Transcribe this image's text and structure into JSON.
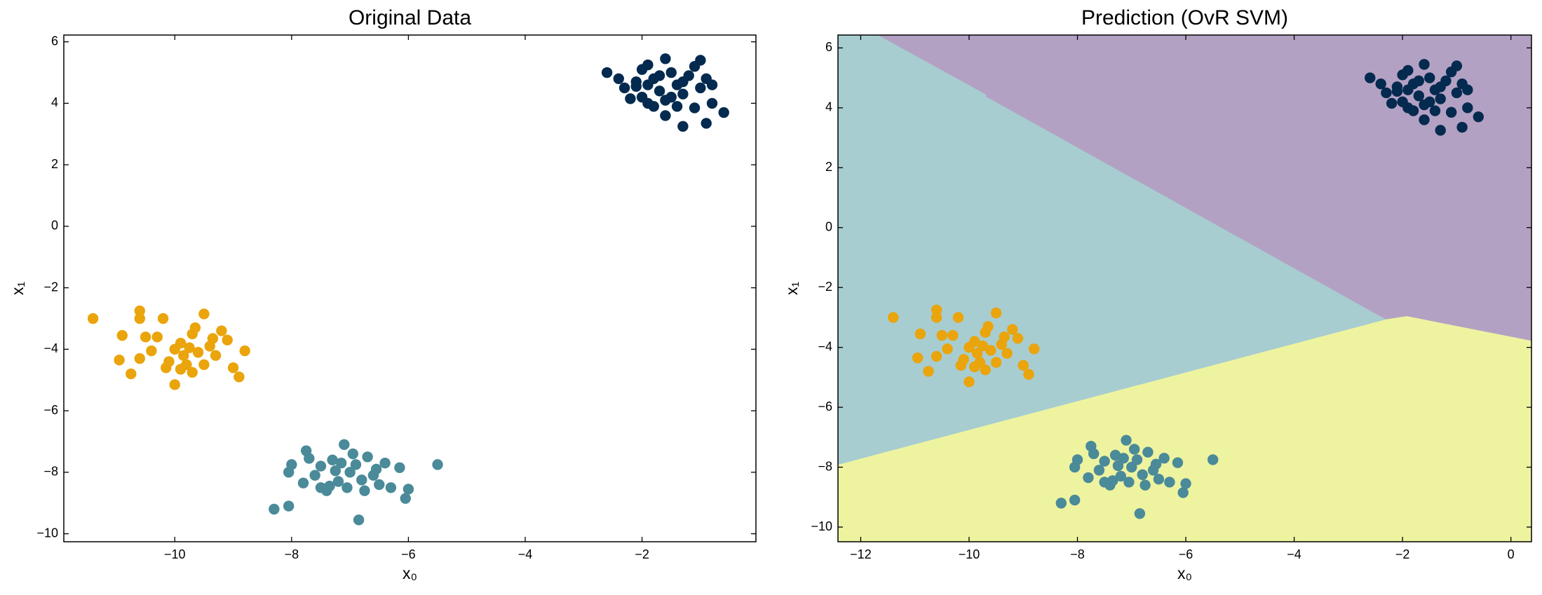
{
  "chart_data": [
    {
      "type": "scatter",
      "title": "Original Data",
      "xlabel": "x₀",
      "ylabel": "x₁",
      "xlim": [
        -11.9,
        -0.05
      ],
      "ylim": [
        -10.26,
        6.22
      ],
      "xticks": [
        {
          "value": -10,
          "label": "−10"
        },
        {
          "value": -8,
          "label": "−8"
        },
        {
          "value": -6,
          "label": "−6"
        },
        {
          "value": -4,
          "label": "−4"
        },
        {
          "value": -2,
          "label": "−2"
        }
      ],
      "yticks": [
        {
          "value": -10,
          "label": "−10"
        },
        {
          "value": -8,
          "label": "−8"
        },
        {
          "value": -6,
          "label": "−6"
        },
        {
          "value": -4,
          "label": "−4"
        },
        {
          "value": -2,
          "label": "−2"
        },
        0,
        2,
        4,
        6
      ],
      "series": [
        {
          "color": "#042a4f",
          "x": [
            -2.6,
            -1.6,
            -1.0,
            -0.6,
            -1.3,
            -0.9,
            -2.2,
            -1.9,
            -2.1,
            -1.8,
            -1.5,
            -1.4,
            -1.2,
            -0.9,
            -0.8,
            -1.1,
            -1.6,
            -1.9,
            -2.3,
            -2.0,
            -1.7,
            -1.3,
            -1.5,
            -2.0,
            -1.0,
            -1.4,
            -1.8,
            -2.4,
            -1.1,
            -0.8,
            -1.6,
            -2.1,
            -1.3,
            -1.7,
            -1.9
          ],
          "y": [
            5.0,
            5.45,
            5.4,
            3.7,
            3.25,
            3.35,
            4.15,
            5.25,
            4.55,
            4.8,
            4.2,
            4.6,
            4.9,
            4.8,
            4.0,
            3.85,
            3.6,
            4.0,
            4.5,
            4.2,
            4.4,
            4.3,
            5.0,
            5.1,
            4.5,
            3.9,
            3.9,
            4.8,
            5.2,
            4.6,
            4.1,
            4.7,
            4.7,
            4.9,
            4.6
          ]
        },
        {
          "color": "#eaa40c",
          "x": [
            -11.4,
            -10.6,
            -10.0,
            -9.7,
            -8.9,
            -8.8,
            -9.2,
            -9.5,
            -10.75,
            -10.95,
            -10.9,
            -10.6,
            -10.2,
            -10.4,
            -10.1,
            -9.9,
            -9.7,
            -9.6,
            -9.4,
            -9.3,
            -9.8,
            -10.0,
            -9.5,
            -9.1,
            -9.0,
            -10.3,
            -10.6,
            -9.85,
            -9.65,
            -10.15,
            -9.35,
            -9.75,
            -10.5,
            -9.9
          ],
          "y": [
            -3.0,
            -2.75,
            -5.15,
            -4.75,
            -4.9,
            -4.05,
            -3.4,
            -2.85,
            -4.8,
            -4.35,
            -3.55,
            -3.0,
            -3.0,
            -4.05,
            -4.4,
            -3.8,
            -3.5,
            -4.1,
            -3.9,
            -4.2,
            -4.5,
            -4.0,
            -4.5,
            -3.7,
            -4.6,
            -3.6,
            -4.3,
            -4.2,
            -3.3,
            -4.6,
            -3.65,
            -3.95,
            -3.6,
            -4.65
          ]
        },
        {
          "color": "#4a8a99",
          "x": [
            -8.3,
            -8.05,
            -6.85,
            -6.0,
            -6.05,
            -5.5,
            -6.15,
            -7.1,
            -7.75,
            -8.0,
            -8.05,
            -7.8,
            -7.5,
            -7.4,
            -7.2,
            -7.0,
            -6.9,
            -6.7,
            -6.6,
            -6.5,
            -6.3,
            -6.4,
            -7.3,
            -7.5,
            -7.6,
            -7.05,
            -6.8,
            -7.25,
            -6.95,
            -7.7,
            -6.55,
            -7.35,
            -6.75,
            -7.15
          ],
          "y": [
            -9.2,
            -9.1,
            -9.55,
            -8.55,
            -8.85,
            -7.75,
            -7.85,
            -7.1,
            -7.3,
            -7.75,
            -8.0,
            -8.35,
            -8.5,
            -8.6,
            -8.3,
            -8.0,
            -7.75,
            -7.5,
            -8.1,
            -8.4,
            -8.5,
            -7.7,
            -7.6,
            -7.8,
            -8.1,
            -8.5,
            -8.25,
            -7.95,
            -7.4,
            -7.55,
            -7.9,
            -8.45,
            -8.6,
            -7.7
          ]
        }
      ]
    },
    {
      "type": "scatter",
      "title": "Prediction (OvR SVM)",
      "xlabel": "x₀",
      "ylabel": "x₁",
      "xlim": [
        -12.42,
        0.38
      ],
      "ylim": [
        -10.49,
        6.43
      ],
      "xticks": [
        {
          "value": -12,
          "label": "−12"
        },
        {
          "value": -10,
          "label": "−10"
        },
        {
          "value": -8,
          "label": "−8"
        },
        {
          "value": -6,
          "label": "−6"
        },
        {
          "value": -4,
          "label": "−4"
        },
        {
          "value": -2,
          "label": "−2"
        },
        0
      ],
      "yticks": [
        {
          "value": -10,
          "label": "−10"
        },
        {
          "value": -8,
          "label": "−8"
        },
        {
          "value": -6,
          "label": "−6"
        },
        {
          "value": -4,
          "label": "−4"
        },
        {
          "value": -2,
          "label": "−2"
        },
        0,
        2,
        4,
        6
      ],
      "regions": [
        {
          "color": "#a7cdd0",
          "x": [
            -12.42,
            0.38,
            0.38,
            -12.42
          ],
          "y": [
            6.43,
            6.43,
            -10.49,
            -10.49
          ]
        },
        {
          "color": "#b3a1c3",
          "x": [
            -11.67,
            -9.68,
            -9.68,
            -2.29,
            -1.92,
            0.38,
            0.38
          ],
          "y": [
            6.43,
            4.45,
            4.38,
            -3.07,
            -2.97,
            -3.79,
            6.43
          ]
        },
        {
          "color": "#eef3a0",
          "x": [
            -12.42,
            -2.29,
            -1.92,
            0.38,
            0.38,
            -12.42
          ],
          "y": [
            -7.93,
            -3.07,
            -2.97,
            -3.79,
            -10.49,
            -10.49
          ]
        }
      ],
      "series": [
        {
          "color": "#042a4f",
          "x": [
            -2.6,
            -1.6,
            -1.0,
            -0.6,
            -1.3,
            -0.9,
            -2.2,
            -1.9,
            -2.1,
            -1.8,
            -1.5,
            -1.4,
            -1.2,
            -0.9,
            -0.8,
            -1.1,
            -1.6,
            -1.9,
            -2.3,
            -2.0,
            -1.7,
            -1.3,
            -1.5,
            -2.0,
            -1.0,
            -1.4,
            -1.8,
            -2.4,
            -1.1,
            -0.8,
            -1.6,
            -2.1,
            -1.3,
            -1.7,
            -1.9
          ],
          "y": [
            5.0,
            5.45,
            5.4,
            3.7,
            3.25,
            3.35,
            4.15,
            5.25,
            4.55,
            4.8,
            4.2,
            4.6,
            4.9,
            4.8,
            4.0,
            3.85,
            3.6,
            4.0,
            4.5,
            4.2,
            4.4,
            4.3,
            5.0,
            5.1,
            4.5,
            3.9,
            3.9,
            4.8,
            5.2,
            4.6,
            4.1,
            4.7,
            4.7,
            4.9,
            4.6
          ]
        },
        {
          "color": "#eaa40c",
          "x": [
            -11.4,
            -10.6,
            -10.0,
            -9.7,
            -8.9,
            -8.8,
            -9.2,
            -9.5,
            -10.75,
            -10.95,
            -10.9,
            -10.6,
            -10.2,
            -10.4,
            -10.1,
            -9.9,
            -9.7,
            -9.6,
            -9.4,
            -9.3,
            -9.8,
            -10.0,
            -9.5,
            -9.1,
            -9.0,
            -10.3,
            -10.6,
            -9.85,
            -9.65,
            -10.15,
            -9.35,
            -9.75,
            -10.5,
            -9.9
          ],
          "y": [
            -3.0,
            -2.75,
            -5.15,
            -4.75,
            -4.9,
            -4.05,
            -3.4,
            -2.85,
            -4.8,
            -4.35,
            -3.55,
            -3.0,
            -3.0,
            -4.05,
            -4.4,
            -3.8,
            -3.5,
            -4.1,
            -3.9,
            -4.2,
            -4.5,
            -4.0,
            -4.5,
            -3.7,
            -4.6,
            -3.6,
            -4.3,
            -4.2,
            -3.3,
            -4.6,
            -3.65,
            -3.95,
            -3.6,
            -4.65
          ]
        },
        {
          "color": "#4a8a99",
          "x": [
            -8.3,
            -8.05,
            -6.85,
            -6.0,
            -6.05,
            -5.5,
            -6.15,
            -7.1,
            -7.75,
            -8.0,
            -8.05,
            -7.8,
            -7.5,
            -7.4,
            -7.2,
            -7.0,
            -6.9,
            -6.7,
            -6.6,
            -6.5,
            -6.3,
            -6.4,
            -7.3,
            -7.5,
            -7.6,
            -7.05,
            -6.8,
            -7.25,
            -6.95,
            -7.7,
            -6.55,
            -7.35,
            -6.75,
            -7.15
          ],
          "y": [
            -9.2,
            -9.1,
            -9.55,
            -8.55,
            -8.85,
            -7.75,
            -7.85,
            -7.1,
            -7.3,
            -7.75,
            -8.0,
            -8.35,
            -8.5,
            -8.6,
            -8.3,
            -8.0,
            -7.75,
            -7.5,
            -8.1,
            -8.4,
            -8.5,
            -7.7,
            -7.6,
            -7.8,
            -8.1,
            -8.5,
            -8.25,
            -7.95,
            -7.4,
            -7.55,
            -7.9,
            -8.45,
            -8.6,
            -7.7
          ]
        }
      ]
    }
  ]
}
